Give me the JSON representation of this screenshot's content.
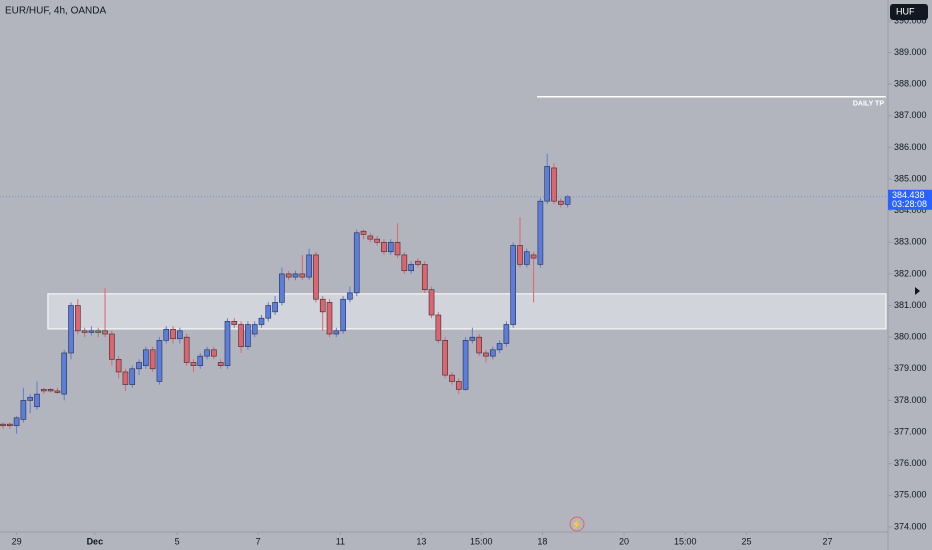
{
  "chart_data": {
    "type": "candlestick",
    "title": "EUR/HUF, 4h, OANDA",
    "currency": "HUF",
    "countdown": "03:28:08",
    "up_color": "#5b7de0",
    "down_color": "#e0646d",
    "open": [
      377.25,
      377.25,
      377.2,
      377.4,
      378.0,
      377.8,
      378.35,
      378.35,
      378.3,
      378.2,
      379.5,
      381.0,
      380.2,
      380.15,
      380.2,
      380.2,
      380.1,
      379.3,
      378.9,
      378.5,
      379.0,
      379.1,
      379.6,
      378.6,
      379.9,
      380.25,
      379.95,
      380.0,
      379.2,
      379.1,
      379.4,
      379.6,
      379.2,
      379.1,
      380.5,
      380.4,
      379.7,
      380.1,
      380.4,
      380.6,
      380.8,
      381.1,
      382.0,
      381.9,
      382.0,
      381.9,
      382.6,
      381.2,
      381.1,
      380.1,
      380.2,
      381.2,
      381.4,
      383.35,
      383.2,
      383.1,
      383.0,
      382.7,
      383.0,
      382.6,
      382.1,
      382.4,
      382.3,
      381.5,
      380.7,
      379.9,
      378.8,
      378.6,
      378.35,
      379.9,
      380.0,
      379.5,
      379.4,
      379.6,
      379.8,
      380.4,
      382.9,
      382.3,
      382.6,
      382.3,
      384.3,
      385.35,
      384.3,
      384.2
    ],
    "high": [
      377.3,
      377.3,
      377.5,
      378.4,
      378.2,
      378.6,
      378.4,
      378.4,
      378.4,
      379.6,
      381.1,
      381.2,
      380.3,
      380.35,
      380.3,
      381.55,
      380.2,
      379.4,
      379.0,
      379.1,
      379.3,
      379.7,
      379.7,
      380.0,
      380.35,
      380.35,
      380.3,
      380.1,
      379.3,
      379.5,
      379.7,
      379.7,
      379.3,
      380.6,
      380.6,
      380.5,
      380.5,
      380.5,
      380.7,
      381.1,
      381.3,
      382.2,
      382.1,
      382.1,
      382.6,
      382.8,
      382.7,
      381.3,
      381.2,
      380.3,
      381.3,
      381.6,
      383.4,
      383.4,
      383.3,
      383.2,
      383.1,
      383.1,
      383.6,
      382.7,
      382.4,
      382.5,
      382.4,
      381.6,
      380.8,
      380.0,
      378.9,
      378.7,
      380.0,
      380.3,
      380.1,
      379.6,
      379.7,
      379.9,
      380.5,
      383.0,
      383.8,
      382.8,
      382.7,
      384.4,
      385.8,
      385.5,
      384.4,
      384.5
    ],
    "low": [
      377.1,
      377.1,
      376.95,
      377.3,
      377.6,
      377.7,
      378.2,
      378.25,
      378.2,
      378.0,
      379.3,
      380.1,
      380.0,
      380.05,
      380.0,
      380.0,
      379.1,
      378.7,
      378.3,
      378.4,
      378.8,
      379.0,
      378.9,
      378.5,
      379.8,
      379.8,
      379.8,
      379.1,
      378.9,
      379.0,
      379.3,
      379.3,
      379.0,
      379.0,
      380.3,
      379.5,
      379.6,
      380.0,
      380.3,
      380.5,
      380.7,
      381.0,
      381.8,
      381.8,
      381.8,
      381.8,
      381.1,
      380.2,
      380.0,
      380.0,
      380.1,
      381.1,
      381.3,
      383.1,
      383.0,
      382.9,
      382.6,
      382.6,
      382.5,
      382.0,
      382.0,
      382.2,
      381.4,
      380.6,
      379.8,
      378.7,
      378.5,
      378.2,
      378.3,
      379.8,
      379.4,
      379.2,
      379.3,
      379.5,
      379.7,
      380.3,
      382.2,
      382.2,
      381.1,
      382.2,
      384.2,
      384.2,
      384.1,
      384.1
    ],
    "close": [
      377.2,
      377.2,
      377.45,
      378.0,
      378.1,
      378.2,
      378.3,
      378.3,
      378.25,
      379.5,
      381.0,
      380.2,
      380.15,
      380.2,
      380.15,
      380.1,
      379.3,
      378.9,
      378.5,
      379.0,
      379.2,
      379.6,
      379.0,
      379.9,
      380.25,
      379.95,
      380.2,
      379.2,
      379.1,
      379.4,
      379.6,
      379.4,
      379.1,
      380.5,
      380.4,
      379.7,
      380.4,
      380.4,
      380.6,
      381.0,
      381.1,
      382.0,
      381.9,
      382.0,
      381.9,
      382.6,
      381.2,
      380.8,
      380.1,
      380.2,
      381.2,
      381.4,
      383.3,
      383.25,
      383.1,
      383.0,
      382.7,
      383.0,
      382.6,
      382.1,
      382.3,
      382.3,
      381.5,
      380.7,
      379.9,
      378.8,
      378.6,
      378.35,
      379.9,
      380.0,
      379.5,
      379.4,
      379.6,
      379.8,
      380.4,
      382.9,
      382.3,
      382.7,
      382.5,
      384.3,
      385.4,
      384.3,
      384.2,
      384.438
    ],
    "zone": {
      "top": 381.37,
      "bottom": 380.26,
      "start": 6.6
    },
    "level": {
      "value": 387.6,
      "label": "DAILY TP",
      "start": 78.5
    },
    "xlim": [
      -0.44,
      130.1
    ],
    "xticks": [
      {
        "value": 2,
        "label": "29"
      },
      {
        "value": 13.5,
        "label": "Dec"
      },
      {
        "value": 25.6,
        "label": "5"
      },
      {
        "value": 37.5,
        "label": "7"
      },
      {
        "value": 49.6,
        "label": "11"
      },
      {
        "value": 61.5,
        "label": "13"
      },
      {
        "value": 70.3,
        "label": "15:00"
      },
      {
        "value": 79.3,
        "label": "18"
      },
      {
        "value": 91.3,
        "label": "20"
      },
      {
        "value": 100.3,
        "label": "15:00"
      },
      {
        "value": 109.3,
        "label": "25"
      },
      {
        "value": 121.2,
        "label": "27"
      }
    ],
    "ylim": [
      373.84,
      390.66
    ],
    "yticks": [
      {
        "value": 374,
        "label": "374.000"
      },
      {
        "value": 375,
        "label": "375.000"
      },
      {
        "value": 376,
        "label": "376.000"
      },
      {
        "value": 377,
        "label": "377.000"
      },
      {
        "value": 378,
        "label": "378.000"
      },
      {
        "value": 379,
        "label": "379.000"
      },
      {
        "value": 380,
        "label": "380.000"
      },
      {
        "value": 381,
        "label": "381.000"
      },
      {
        "value": 382,
        "label": "382.000"
      },
      {
        "value": 383,
        "label": "383.000"
      },
      {
        "value": 384,
        "label": "384.000"
      },
      {
        "value": 385,
        "label": "385.000"
      },
      {
        "value": 386,
        "label": "386.000"
      },
      {
        "value": 387,
        "label": "387.000"
      },
      {
        "value": 388,
        "label": "388.000"
      },
      {
        "value": 389,
        "label": "389.000"
      },
      {
        "value": 390,
        "label": "390.000"
      }
    ]
  }
}
